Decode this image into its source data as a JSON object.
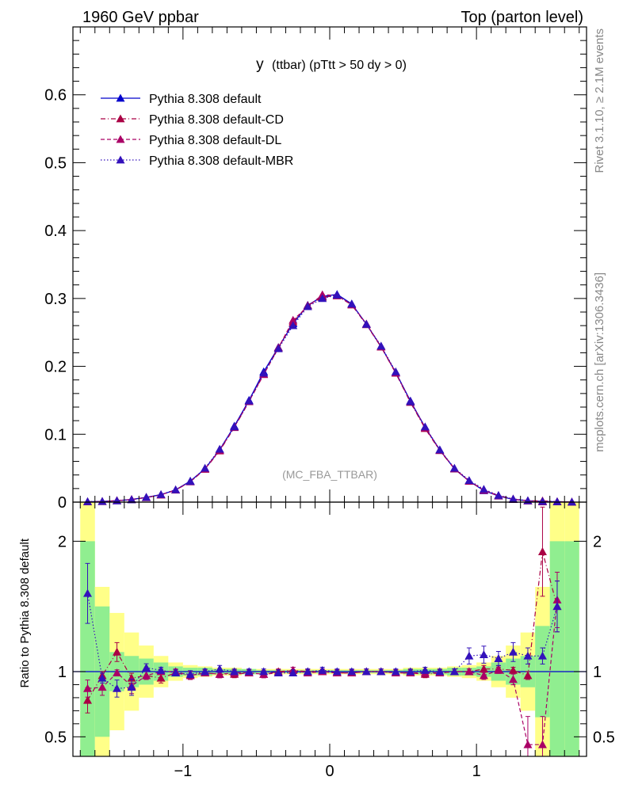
{
  "header": {
    "left": "1960 GeV ppbar",
    "right": "Top (parton level)"
  },
  "side_labels": {
    "rivet": "Rivet 3.1.10, ≥ 2.1M events",
    "mcplots": "mcplots.cern.ch [arXiv:1306.3436]"
  },
  "plot_title": {
    "main": "y",
    "sub": "(ttbar) (pTtt > 50 dy > 0)"
  },
  "analysis_label": "(MC_FBA_TTBAR)",
  "ratio_ylabel": "Ratio to Pythia 8.308 default",
  "colors": {
    "default": "#0000cc",
    "cd": "#aa0044",
    "dl": "#aa0066",
    "mbr": "#3311bb",
    "band_green": "#90ee90",
    "band_yellow": "#ffff88"
  },
  "chart_data": [
    {
      "type": "line",
      "panel": "main",
      "xlim": [
        -1.75,
        1.75
      ],
      "ylim": [
        0,
        0.7
      ],
      "y_ticks": [
        "0",
        "0.1",
        "0.2",
        "0.3",
        "0.4",
        "0.5",
        "0.6"
      ],
      "x": [
        -1.65,
        -1.55,
        -1.45,
        -1.35,
        -1.25,
        -1.15,
        -1.05,
        -0.95,
        -0.85,
        -0.75,
        -0.65,
        -0.55,
        -0.45,
        -0.35,
        -0.25,
        -0.15,
        -0.05,
        0.05,
        0.15,
        0.25,
        0.35,
        0.45,
        0.55,
        0.65,
        0.75,
        0.85,
        0.95,
        1.05,
        1.15,
        1.25,
        1.35,
        1.45,
        1.55,
        1.65
      ],
      "series": [
        {
          "name": "Pythia 8.308 default",
          "line": "solid",
          "values": [
            0.0005,
            0.001,
            0.002,
            0.004,
            0.007,
            0.011,
            0.018,
            0.031,
            0.049,
            0.077,
            0.112,
            0.15,
            0.192,
            0.228,
            0.263,
            0.29,
            0.303,
            0.306,
            0.292,
            0.262,
            0.229,
            0.191,
            0.149,
            0.11,
            0.077,
            0.049,
            0.031,
            0.017,
            0.009,
            0.004,
            0.002,
            0.001,
            0.0005,
            0.0002
          ]
        },
        {
          "name": "Pythia 8.308 default-CD",
          "line": "dashdot",
          "values": [
            0.0004,
            0.0009,
            0.0023,
            0.0038,
            0.0068,
            0.0105,
            0.0178,
            0.03,
            0.0485,
            0.0755,
            0.11,
            0.148,
            0.1885,
            0.2275,
            0.2655,
            0.2895,
            0.302,
            0.304,
            0.2905,
            0.2615,
            0.2285,
            0.19,
            0.147,
            0.1085,
            0.076,
            0.049,
            0.031,
            0.018,
            0.0095,
            0.0046,
            0.0019,
            0.0019,
            0.0006,
            0.0002
          ]
        },
        {
          "name": "Pythia 8.308 default-DL",
          "line": "dashed",
          "values": [
            0.0004,
            0.0009,
            0.0021,
            0.0038,
            0.0068,
            0.0108,
            0.018,
            0.03,
            0.049,
            0.0765,
            0.1105,
            0.1485,
            0.188,
            0.227,
            0.268,
            0.288,
            0.3055,
            0.3045,
            0.291,
            0.2625,
            0.229,
            0.1905,
            0.148,
            0.1095,
            0.0765,
            0.0495,
            0.031,
            0.0175,
            0.0094,
            0.0042,
            0.0019,
            0.0004,
            0.0007,
            0.0002
          ]
        },
        {
          "name": "Pythia 8.308 default-MBR",
          "line": "dotted",
          "values": [
            0.0008,
            0.001,
            0.002,
            0.0035,
            0.0071,
            0.0112,
            0.0183,
            0.0305,
            0.05,
            0.078,
            0.111,
            0.149,
            0.19,
            0.226,
            0.26,
            0.288,
            0.3,
            0.305,
            0.292,
            0.262,
            0.23,
            0.192,
            0.148,
            0.111,
            0.077,
            0.05,
            0.032,
            0.019,
            0.01,
            0.0047,
            0.0022,
            0.0011,
            0.0006,
            0.0002
          ]
        }
      ]
    },
    {
      "type": "line",
      "panel": "ratio",
      "xlim": [
        -1.75,
        1.75
      ],
      "ylim": [
        0.35,
        2.3
      ],
      "y_ticks": [
        "0.5",
        "1",
        "2"
      ],
      "x_ticks": [
        "−1",
        "0",
        "1"
      ],
      "x_tick_values": [
        -1,
        0,
        1
      ],
      "x": [
        -1.65,
        -1.55,
        -1.45,
        -1.35,
        -1.25,
        -1.15,
        -1.05,
        -0.95,
        -0.85,
        -0.75,
        -0.65,
        -0.55,
        -0.45,
        -0.35,
        -0.25,
        -0.15,
        -0.05,
        0.05,
        0.15,
        0.25,
        0.35,
        0.45,
        0.55,
        0.65,
        0.75,
        0.85,
        0.95,
        1.05,
        1.15,
        1.25,
        1.35,
        1.45,
        1.55,
        1.65
      ],
      "band_inner": [
        2.0,
        1.5,
        1.15,
        1.12,
        1.1,
        1.07,
        1.04,
        1.03,
        1.03,
        1.02,
        1.02,
        1.02,
        1.01,
        1.01,
        1.01,
        1.01,
        1.01,
        1.01,
        1.01,
        1.01,
        1.01,
        1.01,
        1.02,
        1.02,
        1.02,
        1.03,
        1.03,
        1.04,
        1.07,
        1.1,
        1.12,
        1.35,
        2.0,
        2.0
      ],
      "band_outer": [
        2.5,
        1.65,
        1.45,
        1.3,
        1.2,
        1.12,
        1.07,
        1.05,
        1.04,
        1.03,
        1.03,
        1.02,
        1.02,
        1.02,
        1.02,
        1.02,
        1.02,
        1.02,
        1.02,
        1.02,
        1.02,
        1.02,
        1.03,
        1.03,
        1.03,
        1.04,
        1.05,
        1.07,
        1.12,
        1.2,
        1.3,
        1.65,
        2.5,
        2.5
      ],
      "series": [
        {
          "name": "Pythia 8.308 default-CD",
          "values": [
            0.78,
            0.97,
            1.15,
            0.95,
            0.97,
            0.95,
            0.99,
            0.97,
            0.99,
            0.98,
            0.98,
            0.99,
            0.98,
            1.0,
            1.01,
            1.0,
            1.0,
            0.99,
            0.99,
            1.0,
            1.0,
            0.99,
            0.99,
            0.98,
            0.99,
            1.0,
            1.0,
            1.02,
            1.02,
            1.01,
            0.97,
            1.92,
            1.5,
            null
          ]
        },
        {
          "name": "Pythia 8.308 default-DL",
          "values": [
            0.87,
            0.88,
            0.99,
            0.89,
            0.97,
            1.0,
            1.0,
            0.97,
            0.99,
            0.98,
            0.99,
            0.99,
            0.98,
            0.99,
            1.01,
            0.99,
            1.0,
            0.99,
            0.99,
            1.0,
            1.0,
            0.99,
            0.99,
            0.99,
            0.99,
            1.0,
            1.0,
            0.97,
            1.01,
            0.94,
            0.44,
            0.44,
            1.55,
            null
          ]
        },
        {
          "name": "Pythia 8.308 default-MBR",
          "values": [
            1.6,
            0.95,
            0.87,
            0.88,
            1.03,
            1.01,
            0.99,
            0.98,
            1.0,
            1.02,
            1.0,
            1.0,
            1.0,
            0.99,
            0.99,
            1.0,
            1.01,
            1.0,
            1.0,
            1.0,
            1.0,
            1.0,
            1.0,
            1.01,
            1.0,
            1.0,
            1.12,
            1.13,
            1.1,
            1.15,
            1.12,
            1.12,
            1.5,
            null
          ]
        }
      ]
    }
  ]
}
